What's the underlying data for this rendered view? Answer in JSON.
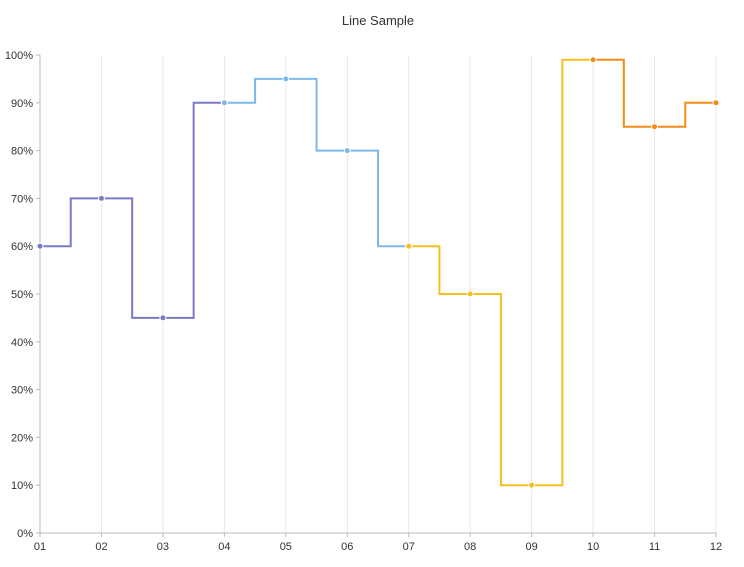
{
  "chart_data": {
    "type": "line",
    "title": "Line Sample",
    "interpolation": "step-center",
    "categories": [
      "01",
      "02",
      "03",
      "04",
      "05",
      "06",
      "07",
      "08",
      "09",
      "10",
      "11",
      "12"
    ],
    "yticks": [
      "0%",
      "10%",
      "20%",
      "30%",
      "40%",
      "50%",
      "60%",
      "70%",
      "80%",
      "90%",
      "100%"
    ],
    "ylim": [
      0,
      100
    ],
    "y_unit": "%",
    "grid": "vertical",
    "series": [
      {
        "x": [
          "01",
          "02",
          "03",
          "04"
        ],
        "values": [
          60,
          70,
          45,
          90
        ],
        "color": "#7a79c4"
      },
      {
        "x": [
          "04",
          "05",
          "06",
          "07"
        ],
        "values": [
          90,
          95,
          80,
          60
        ],
        "color": "#7db9e8"
      },
      {
        "x": [
          "07",
          "08",
          "09",
          "10"
        ],
        "values": [
          60,
          50,
          10,
          99
        ],
        "color": "#f5bf1f"
      },
      {
        "x": [
          "10",
          "11",
          "12"
        ],
        "values": [
          99,
          85,
          90
        ],
        "color": "#f58a16"
      }
    ],
    "colors": {
      "axis": "#bbbbbb",
      "grid": "#e8e8e8",
      "text": "#333333"
    }
  }
}
